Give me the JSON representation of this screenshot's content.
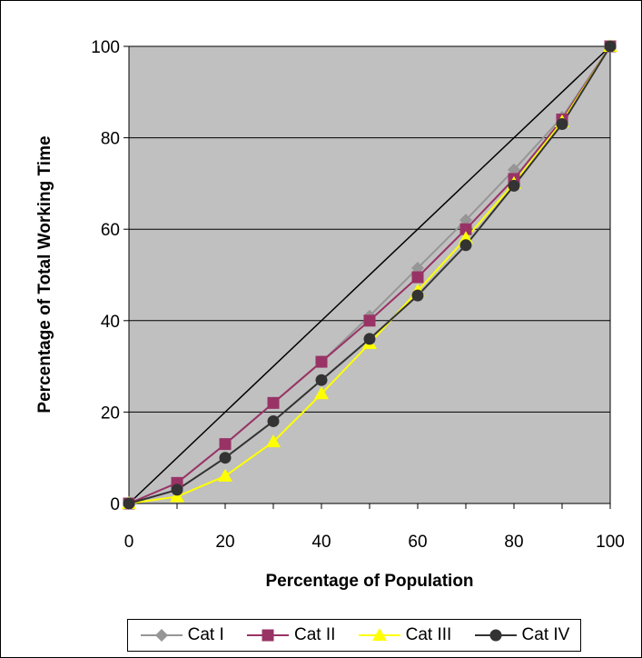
{
  "chart_data": {
    "type": "line",
    "xlabel": "Percentage of Population",
    "ylabel": "Percentage of Total Working Time",
    "xlim": [
      0,
      100
    ],
    "ylim": [
      0,
      100
    ],
    "xticks": [
      0,
      20,
      40,
      60,
      80,
      100
    ],
    "yticks": [
      0,
      20,
      40,
      60,
      80,
      100
    ],
    "grid": "horizontal",
    "plot_background": "#c0c0c0",
    "legend_position": "bottom",
    "equality_line": {
      "x": [
        0,
        100
      ],
      "y": [
        0,
        100
      ],
      "color": "#000000"
    },
    "x": [
      0,
      10,
      20,
      30,
      40,
      50,
      60,
      70,
      80,
      90,
      100
    ],
    "series": [
      {
        "name": "Cat I",
        "color": "#969696",
        "marker": "diamond",
        "values": [
          0,
          4.5,
          13,
          22,
          31,
          41,
          51.5,
          62,
          73,
          84.5,
          100
        ]
      },
      {
        "name": "Cat II",
        "color": "#993366",
        "marker": "square",
        "values": [
          0,
          4.5,
          13,
          22,
          31,
          40,
          49.5,
          60,
          71,
          84,
          100
        ]
      },
      {
        "name": "Cat III",
        "color": "#ffff00",
        "marker": "triangle",
        "values": [
          0,
          1.5,
          6,
          13.5,
          24,
          35,
          46.5,
          58,
          70,
          83.5,
          100
        ]
      },
      {
        "name": "Cat IV",
        "color": "#333333",
        "marker": "circle",
        "values": [
          0,
          3,
          10,
          18,
          27,
          36,
          45.5,
          56.5,
          69.5,
          83,
          100
        ]
      }
    ]
  }
}
